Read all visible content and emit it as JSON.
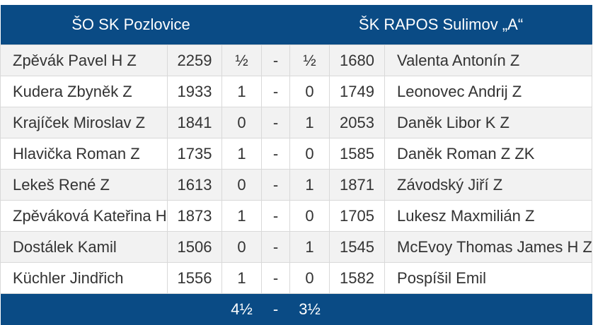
{
  "header": {
    "home_team": "ŠO SK Pozlovice",
    "away_team": "ŠK RAPOS Sulimov „A“"
  },
  "rows": [
    {
      "home_player": "Zpěvák Pavel H Z",
      "home_elo": "2259",
      "home_score": "½",
      "sep": "-",
      "away_score": "½",
      "away_elo": "1680",
      "away_player": "Valenta Antonín Z"
    },
    {
      "home_player": "Kudera Zbyněk Z",
      "home_elo": "1933",
      "home_score": "1",
      "sep": "-",
      "away_score": "0",
      "away_elo": "1749",
      "away_player": "Leonovec Andrij Z"
    },
    {
      "home_player": "Krajíček Miroslav Z",
      "home_elo": "1841",
      "home_score": "0",
      "sep": "-",
      "away_score": "1",
      "away_elo": "2053",
      "away_player": "Daněk Libor K Z"
    },
    {
      "home_player": "Hlavička Roman Z",
      "home_elo": "1735",
      "home_score": "1",
      "sep": "-",
      "away_score": "0",
      "away_elo": "1585",
      "away_player": "Daněk Roman Z ZK"
    },
    {
      "home_player": "Lekeš René Z",
      "home_elo": "1613",
      "home_score": "0",
      "sep": "-",
      "away_score": "1",
      "away_elo": "1871",
      "away_player": "Závodský Jiří Z"
    },
    {
      "home_player": "Zpěváková Kateřina H",
      "home_elo": "1873",
      "home_score": "1",
      "sep": "-",
      "away_score": "0",
      "away_elo": "1705",
      "away_player": "Lukesz Maxmilián Z"
    },
    {
      "home_player": "Dostálek Kamil",
      "home_elo": "1506",
      "home_score": "0",
      "sep": "-",
      "away_score": "1",
      "away_elo": "1545",
      "away_player": "McEvoy Thomas James H Z"
    },
    {
      "home_player": "Küchler Jindřich",
      "home_elo": "1556",
      "home_score": "1",
      "sep": "-",
      "away_score": "0",
      "away_elo": "1582",
      "away_player": "Pospíšil Emil"
    }
  ],
  "total": {
    "home": "4½",
    "sep": "-",
    "away": "3½"
  },
  "colors": {
    "header_bg": "#0a4b85",
    "header_text": "#ffffff",
    "row_odd": "#f2f2f2",
    "row_even": "#ffffff"
  }
}
